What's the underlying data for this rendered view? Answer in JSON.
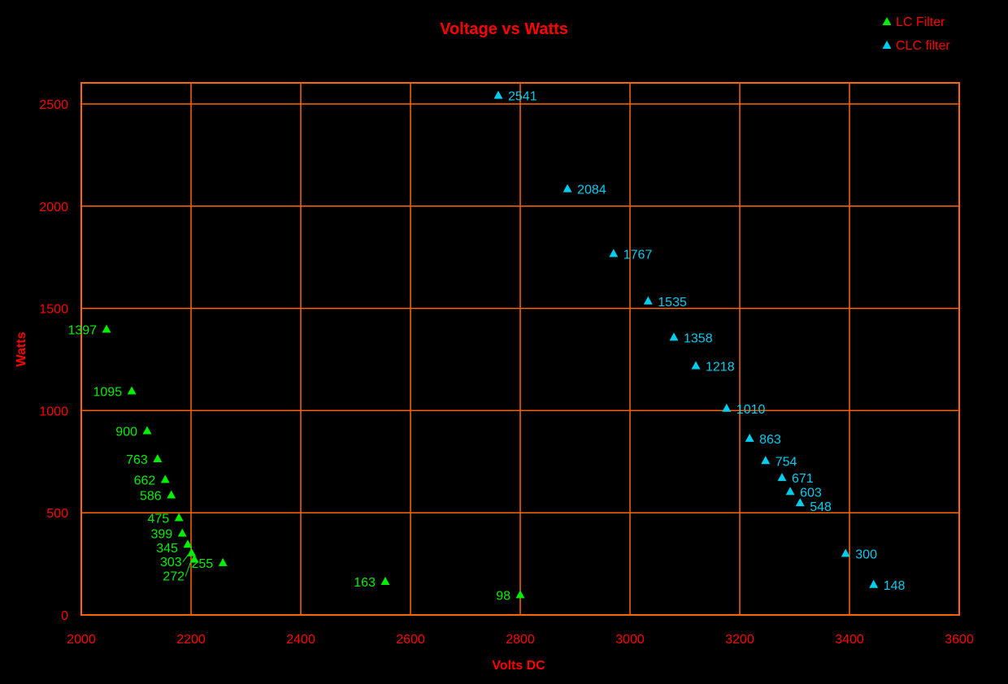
{
  "chart_data": {
    "type": "scatter",
    "title": "Voltage vs Watts",
    "xlabel": "Volts DC",
    "ylabel": "Watts",
    "xlim": [
      2000,
      3600
    ],
    "ylim": [
      0,
      2600
    ],
    "xticks": [
      2000,
      2200,
      2400,
      2600,
      2800,
      3000,
      3200,
      3400,
      3600
    ],
    "yticks": [
      0,
      500,
      1000,
      1500,
      2000,
      2500
    ],
    "grid": true,
    "legend_position": "top-right",
    "colors": {
      "axis": "#ff6600",
      "text": "#ff0000",
      "background": "#000000"
    },
    "series": [
      {
        "name": "LC Filter",
        "color": "#00ee00",
        "label_side": "left",
        "points": [
          {
            "x": 2046,
            "y": 1397,
            "label": "1397"
          },
          {
            "x": 2092,
            "y": 1095,
            "label": "1095"
          },
          {
            "x": 2120,
            "y": 900,
            "label": "900"
          },
          {
            "x": 2139,
            "y": 763,
            "label": "763"
          },
          {
            "x": 2153,
            "y": 662,
            "label": "662"
          },
          {
            "x": 2164,
            "y": 586,
            "label": "586"
          },
          {
            "x": 2178,
            "y": 475,
            "label": "475"
          },
          {
            "x": 2184,
            "y": 399,
            "label": "399"
          },
          {
            "x": 2194,
            "y": 345,
            "label": "345"
          },
          {
            "x": 2201,
            "y": 303,
            "label": "303"
          },
          {
            "x": 2206,
            "y": 272,
            "label": "272"
          },
          {
            "x": 2258,
            "y": 255,
            "label": "255"
          },
          {
            "x": 2554,
            "y": 163,
            "label": "163"
          },
          {
            "x": 2800,
            "y": 98,
            "label": "98"
          }
        ]
      },
      {
        "name": "CLC filter",
        "color": "#00ccee",
        "label_side": "right",
        "points": [
          {
            "x": 2760,
            "y": 2541,
            "label": "2541"
          },
          {
            "x": 2886,
            "y": 2084,
            "label": "2084"
          },
          {
            "x": 2970,
            "y": 1767,
            "label": "1767"
          },
          {
            "x": 3033,
            "y": 1535,
            "label": "1535"
          },
          {
            "x": 3080,
            "y": 1358,
            "label": "1358"
          },
          {
            "x": 3120,
            "y": 1218,
            "label": "1218"
          },
          {
            "x": 3176,
            "y": 1010,
            "label": "1010"
          },
          {
            "x": 3218,
            "y": 863,
            "label": "863"
          },
          {
            "x": 3247,
            "y": 754,
            "label": "754"
          },
          {
            "x": 3277,
            "y": 671,
            "label": "671"
          },
          {
            "x": 3292,
            "y": 603,
            "label": "603"
          },
          {
            "x": 3310,
            "y": 548,
            "label": "548"
          },
          {
            "x": 3393,
            "y": 300,
            "label": "300"
          },
          {
            "x": 3444,
            "y": 148,
            "label": "148"
          }
        ]
      }
    ]
  }
}
